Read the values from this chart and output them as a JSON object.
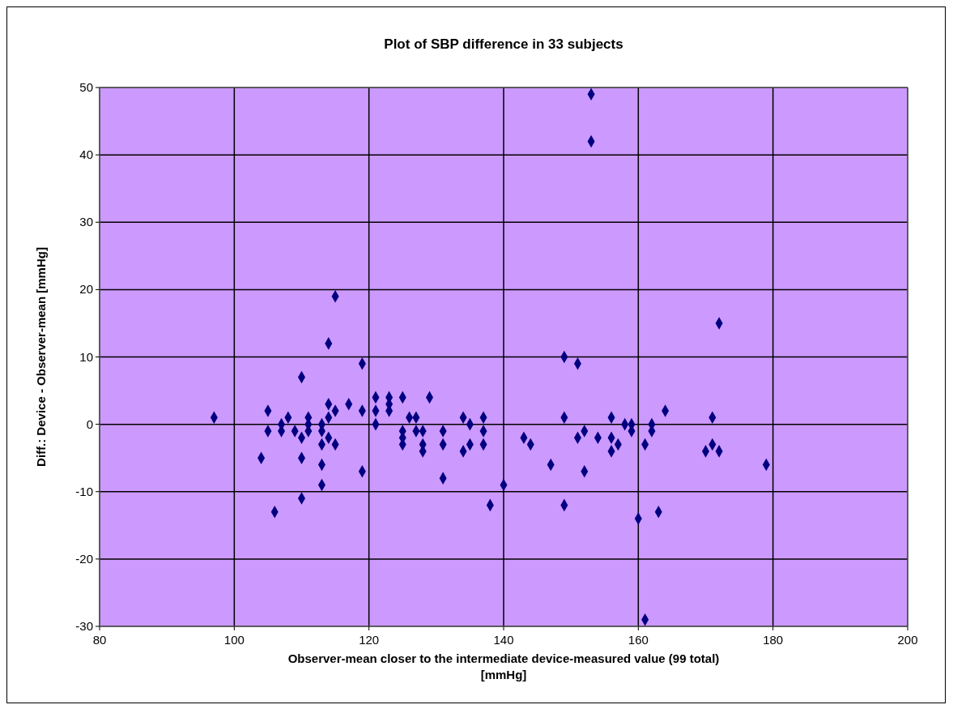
{
  "chart_data": {
    "type": "scatter",
    "title": "Plot of SBP difference in 33 subjects",
    "xlabel": "Observer-mean  closer to the intermediate device-measured  value (99 total) [mmHg]",
    "ylabel": "Diff.: Device  - Observer-mean  [mmHg]",
    "xlim": [
      80,
      200
    ],
    "xticks": [
      80,
      100,
      120,
      140,
      160,
      180,
      200
    ],
    "ylim": [
      -30,
      50
    ],
    "yticks": [
      -30,
      -20,
      -10,
      0,
      10,
      20,
      30,
      40,
      50
    ],
    "grid": true,
    "marker": "diamond",
    "series": [
      {
        "color": "#000080",
        "x": [
          97,
          104,
          105,
          105,
          106,
          107,
          107,
          108,
          109,
          110,
          110,
          110,
          110,
          111,
          111,
          111,
          113,
          113,
          113,
          113,
          113,
          114,
          114,
          114,
          114,
          115,
          115,
          115,
          117,
          119,
          119,
          119,
          121,
          121,
          121,
          123,
          123,
          123,
          125,
          125,
          125,
          125,
          126,
          127,
          127,
          128,
          128,
          128,
          129,
          131,
          131,
          131,
          134,
          134,
          135,
          135,
          137,
          137,
          137,
          138,
          140,
          143,
          144,
          147,
          149,
          149,
          149,
          151,
          151,
          152,
          152,
          153,
          153,
          154,
          156,
          156,
          156,
          157,
          158,
          159,
          159,
          160,
          161,
          161,
          162,
          162,
          163,
          164,
          170,
          171,
          171,
          172,
          172,
          179
        ],
        "values": [
          1,
          -5,
          2,
          -1,
          -13,
          0,
          -1,
          1,
          -1,
          7,
          -2,
          -5,
          -11,
          1,
          0,
          -1,
          0,
          -1,
          -3,
          -6,
          -9,
          12,
          3,
          1,
          -2,
          19,
          2,
          -3,
          3,
          9,
          2,
          -7,
          4,
          2,
          0,
          4,
          3,
          2,
          4,
          -1,
          -2,
          -3,
          1,
          1,
          -1,
          -1,
          -3,
          -4,
          4,
          -1,
          -3,
          -8,
          1,
          -4,
          0,
          -3,
          1,
          -1,
          -3,
          -12,
          -9,
          -2,
          -3,
          -6,
          10,
          1,
          -12,
          9,
          -2,
          -1,
          -7,
          49,
          42,
          -2,
          1,
          -2,
          -4,
          -3,
          0,
          0,
          -1,
          -14,
          -3,
          -29,
          0,
          -1,
          -13,
          2,
          -4,
          1,
          -3,
          15,
          -4,
          -6
        ]
      }
    ]
  }
}
